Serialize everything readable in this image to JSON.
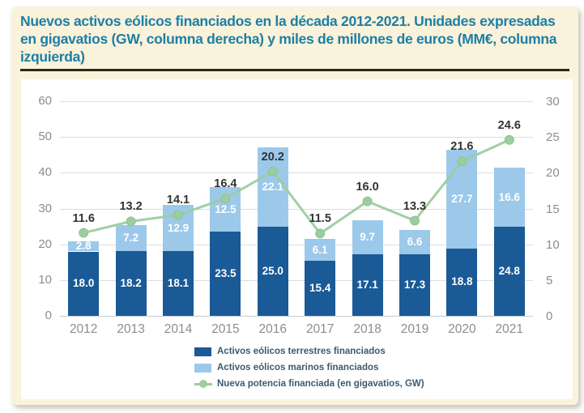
{
  "panel": {
    "title": "Nuevos activos eólicos financiados en la década 2012-2021. Unidades expresadas en gigavatios (GW, columna derecha) y miles de millones de euros (MM€, columna izquierda)"
  },
  "colors": {
    "panel_bg": "#faf2da",
    "title_teal": "#1c7fa6",
    "rule_dark": "#2f2519",
    "terrestre_blue": "#1a5a96",
    "marino_blue": "#9cc9ea",
    "line_green": "#9bcd9f",
    "grid_gray": "#dadee2",
    "tick_gray": "#8b8d90",
    "line_label_dark": "#333333",
    "legend_text": "#3a5a70"
  },
  "chart_data": {
    "type": "bar",
    "stacked": true,
    "grid": true,
    "legend_position": "bottom",
    "categories": [
      "2012",
      "2013",
      "2014",
      "2015",
      "2016",
      "2017",
      "2018",
      "2019",
      "2020",
      "2021"
    ],
    "series": [
      {
        "name": "Activos eólicos terrestres financiados",
        "kind": "bar",
        "axis": "left",
        "color": "#1a5a96",
        "values": [
          18.0,
          18.2,
          18.1,
          23.5,
          25.0,
          15.4,
          17.1,
          17.3,
          18.8,
          24.8
        ]
      },
      {
        "name": "Activos eólicos marinos financiados",
        "kind": "bar",
        "axis": "left",
        "color": "#9cc9ea",
        "values": [
          2.8,
          7.2,
          12.9,
          12.5,
          22.1,
          6.1,
          9.7,
          6.6,
          27.7,
          16.6
        ]
      },
      {
        "name": "Nueva potencia financiada (en gigavatios, GW)",
        "kind": "line",
        "axis": "right",
        "color": "#9bcd9f",
        "values": [
          11.6,
          13.2,
          14.1,
          16.4,
          20.2,
          11.5,
          16.0,
          13.3,
          21.6,
          24.6
        ]
      }
    ],
    "left_axis": {
      "label": "MM€",
      "min": 0,
      "max": 60,
      "ticks": [
        0,
        10,
        20,
        30,
        40,
        50,
        60
      ]
    },
    "right_axis": {
      "label": "GW",
      "min": 0,
      "max": 30,
      "ticks": [
        0,
        5,
        10,
        15,
        20,
        25,
        30
      ]
    }
  }
}
